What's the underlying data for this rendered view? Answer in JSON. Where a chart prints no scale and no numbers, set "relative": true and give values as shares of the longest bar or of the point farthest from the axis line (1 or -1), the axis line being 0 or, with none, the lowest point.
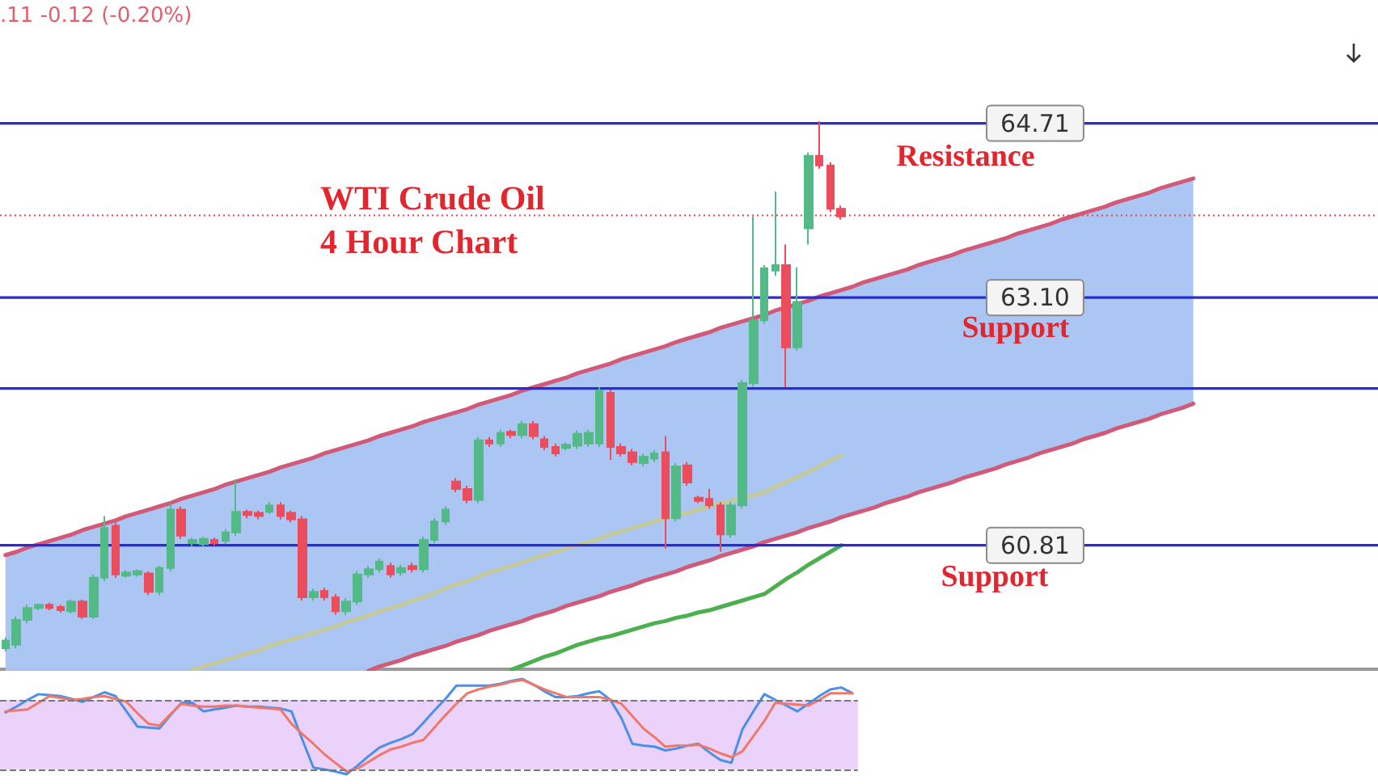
{
  "chart_data": [
    {
      "type": "candlestick",
      "title": "WTI Crude Oil\n4 Hour Chart",
      "annotations": [
        ".11 -0.12 (-0.20%)",
        "Resistance",
        "Support",
        "Support"
      ],
      "categories": [
        null,
        null,
        null,
        null,
        null,
        null,
        null,
        null,
        null,
        null,
        null,
        null,
        null,
        null,
        null,
        null,
        null,
        null,
        null,
        null,
        null,
        null,
        null,
        null,
        null,
        null,
        null,
        null,
        null,
        null,
        null,
        null,
        null,
        null,
        null,
        null,
        null,
        null,
        null,
        null,
        null,
        null,
        null,
        null,
        null,
        null,
        null,
        null,
        null,
        null,
        null,
        null,
        null,
        null,
        null,
        null,
        null,
        null,
        null,
        null,
        null,
        null,
        null,
        null,
        null,
        null,
        null,
        null,
        null,
        null,
        null,
        null,
        null,
        null,
        null,
        null,
        null,
        null,
        null,
        null,
        null,
        null,
        null,
        null,
        null,
        null,
        null,
        null,
        null,
        null,
        null,
        null,
        null,
        null,
        null,
        null,
        null,
        null,
        null,
        null,
        null,
        null,
        null,
        null,
        null,
        null,
        null,
        null,
        null
      ],
      "ohlc": [
        [
          59.86,
          59.96,
          59.83,
          59.93
        ],
        [
          59.89,
          60.15,
          59.86,
          60.12
        ],
        [
          60.12,
          60.26,
          60.09,
          60.23
        ],
        [
          60.23,
          60.27,
          60.21,
          60.26
        ],
        [
          60.26,
          60.28,
          60.21,
          60.23
        ],
        [
          60.24,
          60.26,
          60.19,
          60.21
        ],
        [
          60.2,
          60.31,
          60.18,
          60.29
        ],
        [
          60.29,
          60.31,
          60.13,
          60.15
        ],
        [
          60.15,
          60.54,
          60.13,
          60.51
        ],
        [
          60.51,
          61.08,
          60.48,
          60.97
        ],
        [
          60.99,
          61.02,
          60.51,
          60.54
        ],
        [
          60.53,
          60.58,
          60.51,
          60.56
        ],
        [
          60.54,
          60.59,
          60.52,
          60.57
        ],
        [
          60.55,
          60.57,
          60.35,
          60.38
        ],
        [
          60.38,
          60.62,
          60.35,
          60.6
        ],
        [
          60.6,
          61.2,
          60.57,
          61.14
        ],
        [
          61.14,
          61.17,
          60.87,
          60.9
        ],
        [
          60.83,
          60.88,
          60.8,
          60.86
        ],
        [
          60.82,
          60.89,
          60.8,
          60.87
        ],
        [
          60.86,
          60.88,
          60.81,
          60.83
        ],
        [
          60.85,
          60.96,
          60.82,
          60.93
        ],
        [
          60.93,
          61.42,
          60.9,
          61.12
        ],
        [
          61.12,
          61.14,
          61.06,
          61.09
        ],
        [
          61.11,
          61.13,
          61.05,
          61.08
        ],
        [
          61.12,
          61.21,
          61.1,
          61.18
        ],
        [
          61.18,
          61.21,
          61.05,
          61.08
        ],
        [
          61.11,
          61.13,
          61.02,
          61.05
        ],
        [
          61.05,
          61.08,
          60.3,
          60.33
        ],
        [
          60.33,
          60.41,
          60.3,
          60.38
        ],
        [
          60.39,
          60.42,
          60.3,
          60.33
        ],
        [
          60.33,
          60.36,
          60.17,
          60.2
        ],
        [
          60.2,
          60.32,
          60.17,
          60.29
        ],
        [
          60.29,
          60.57,
          60.26,
          60.54
        ],
        [
          60.54,
          60.62,
          60.51,
          60.59
        ],
        [
          60.59,
          60.69,
          60.56,
          60.66
        ],
        [
          60.62,
          60.65,
          60.51,
          60.54
        ],
        [
          60.56,
          60.63,
          60.53,
          60.6
        ],
        [
          60.62,
          60.65,
          60.56,
          60.59
        ],
        [
          60.59,
          60.89,
          60.56,
          60.86
        ],
        [
          60.86,
          61.06,
          60.83,
          61.03
        ],
        [
          61.03,
          61.17,
          61.0,
          61.14
        ],
        [
          61.4,
          61.43,
          61.3,
          61.33
        ],
        [
          61.33,
          61.36,
          61.2,
          61.23
        ],
        [
          61.23,
          61.81,
          61.2,
          61.78
        ],
        [
          61.78,
          61.81,
          61.72,
          61.75
        ],
        [
          61.75,
          61.88,
          61.72,
          61.85
        ],
        [
          61.86,
          61.88,
          61.8,
          61.83
        ],
        [
          61.83,
          61.96,
          61.8,
          61.93
        ],
        [
          61.93,
          61.96,
          61.79,
          61.82
        ],
        [
          61.79,
          61.82,
          61.69,
          61.72
        ],
        [
          61.72,
          61.75,
          61.63,
          61.66
        ],
        [
          61.71,
          61.76,
          61.69,
          61.74
        ],
        [
          61.73,
          61.87,
          61.7,
          61.84
        ],
        [
          61.75,
          61.88,
          61.72,
          61.85
        ],
        [
          61.75,
          62.27,
          61.72,
          62.24
        ],
        [
          62.22,
          62.25,
          61.6,
          61.72
        ],
        [
          61.72,
          61.75,
          61.63,
          61.66
        ],
        [
          61.67,
          61.7,
          61.55,
          61.58
        ],
        [
          61.57,
          61.66,
          61.54,
          61.63
        ],
        [
          61.61,
          61.69,
          61.58,
          61.66
        ],
        [
          61.67,
          61.82,
          60.78,
          61.06
        ],
        [
          61.06,
          61.57,
          61.03,
          61.54
        ],
        [
          61.55,
          61.58,
          61.36,
          61.39
        ],
        [
          61.25,
          61.27,
          61.2,
          61.22
        ],
        [
          61.24,
          61.33,
          61.15,
          61.18
        ],
        [
          61.18,
          61.21,
          60.75,
          60.91
        ],
        [
          60.91,
          61.21,
          60.88,
          61.18
        ],
        [
          61.18,
          62.34,
          61.15,
          62.31
        ],
        [
          62.31,
          63.85,
          62.28,
          62.89
        ],
        [
          62.89,
          63.4,
          62.86,
          63.37
        ],
        [
          63.35,
          64.08,
          63.3,
          63.4
        ],
        [
          63.4,
          63.59,
          62.27,
          62.64
        ],
        [
          62.64,
          63.38,
          62.61,
          63.06
        ],
        [
          63.74,
          64.44,
          63.59,
          64.41
        ],
        [
          64.41,
          64.73,
          64.29,
          64.32
        ],
        [
          64.32,
          64.35,
          63.89,
          63.92
        ],
        [
          63.92,
          63.95,
          63.82,
          63.85
        ],
        null,
        null,
        null,
        null,
        null,
        null,
        null,
        null,
        null,
        null,
        null,
        null,
        null,
        null,
        null,
        null,
        null,
        null,
        null,
        null,
        null,
        null,
        null,
        null,
        null,
        null,
        null,
        null,
        null,
        null,
        null,
        null
      ],
      "series": [
        {
          "type": "line",
          "color": "#a8c3f2",
          "values": [
            null,
            null,
            null,
            null,
            null,
            null,
            null,
            null,
            null,
            null,
            null,
            null,
            null,
            null,
            null,
            null,
            null,
            null,
            null,
            null,
            null,
            null,
            null,
            null,
            null,
            null,
            null,
            null,
            null,
            null,
            null,
            null,
            null,
            null,
            null,
            null,
            null,
            null,
            null,
            null,
            null,
            null,
            null,
            null,
            null,
            null,
            null,
            null,
            null,
            null,
            null,
            null,
            null,
            null,
            null,
            null,
            null,
            null,
            null,
            null,
            null,
            null,
            null,
            null,
            null,
            null,
            null,
            null,
            null,
            null,
            null,
            null,
            null,
            null,
            null,
            null,
            null,
            null,
            null,
            null,
            null,
            null,
            null,
            null,
            null,
            null,
            null,
            null,
            null,
            null,
            null,
            null,
            null,
            null,
            null,
            null,
            null,
            null,
            null,
            null,
            null,
            null,
            null,
            null,
            null,
            null,
            null,
            null,
            null
          ],
          "lower": [
            59.65,
            59.65,
            59.65,
            59.65,
            59.65,
            59.65,
            59.65,
            59.65,
            59.65,
            59.65,
            59.65,
            59.65,
            59.65,
            59.65,
            59.65,
            59.65,
            59.65,
            59.65,
            59.65,
            59.65,
            59.65,
            59.65,
            59.65,
            59.65,
            59.65,
            59.65,
            59.65,
            59.65,
            59.65,
            59.65,
            59.65,
            59.65,
            59.65,
            59.65,
            59.69,
            59.72,
            59.75,
            59.79,
            59.82,
            59.85,
            59.88,
            59.92,
            59.95,
            59.98,
            60.02,
            60.05,
            60.08,
            60.11,
            60.15,
            60.18,
            60.21,
            60.25,
            60.28,
            60.31,
            60.34,
            60.38,
            60.41,
            60.44,
            60.48,
            60.51,
            60.54,
            60.57,
            60.61,
            60.64,
            60.67,
            60.71,
            60.74,
            60.77,
            60.8,
            60.84,
            60.87,
            60.9,
            60.93,
            60.97,
            61.0,
            61.03,
            61.07,
            61.1,
            61.13,
            61.16,
            61.2,
            61.23,
            61.26,
            61.3,
            61.33,
            61.36,
            61.39,
            61.43,
            61.46,
            61.49,
            61.52,
            61.56,
            61.59,
            61.62,
            61.66,
            61.69,
            61.72,
            61.75,
            61.79,
            61.82,
            61.85,
            61.89,
            61.92,
            61.95,
            61.98,
            62.02,
            62.05,
            62.08,
            62.12
          ],
          "upper": [
            60.72,
            60.75,
            60.79,
            60.82,
            60.85,
            60.88,
            60.91,
            60.95,
            60.98,
            61.01,
            61.04,
            61.08,
            61.11,
            61.14,
            61.17,
            61.2,
            61.24,
            61.27,
            61.3,
            61.33,
            61.37,
            61.4,
            61.43,
            61.46,
            61.49,
            61.53,
            61.56,
            61.59,
            61.62,
            61.66,
            61.69,
            61.72,
            61.75,
            61.78,
            61.82,
            61.85,
            61.88,
            61.91,
            61.95,
            61.98,
            62.01,
            62.04,
            62.07,
            62.11,
            62.14,
            62.17,
            62.2,
            62.24,
            62.27,
            62.3,
            62.33,
            62.36,
            62.4,
            62.43,
            62.46,
            62.49,
            62.53,
            62.56,
            62.59,
            62.62,
            62.65,
            62.69,
            62.72,
            62.75,
            62.78,
            62.82,
            62.85,
            62.88,
            62.91,
            62.94,
            62.98,
            63.01,
            63.04,
            63.07,
            63.11,
            63.14,
            63.17,
            63.2,
            63.24,
            63.27,
            63.3,
            63.33,
            63.36,
            63.4,
            63.43,
            63.46,
            63.49,
            63.53,
            63.56,
            63.59,
            63.62,
            63.65,
            63.69,
            63.72,
            63.75,
            63.78,
            63.82,
            63.85,
            63.88,
            63.91,
            63.94,
            63.98,
            64.01,
            64.04,
            64.07,
            64.11,
            64.14,
            64.17,
            64.2
          ]
        },
        {
          "type": "line",
          "color": "#d05a78",
          "values": [
            60.72,
            60.75,
            60.79,
            60.82,
            60.85,
            60.88,
            60.91,
            60.95,
            60.98,
            61.01,
            61.04,
            61.08,
            61.11,
            61.14,
            61.17,
            61.2,
            61.24,
            61.27,
            61.3,
            61.33,
            61.37,
            61.4,
            61.43,
            61.46,
            61.49,
            61.53,
            61.56,
            61.59,
            61.62,
            61.66,
            61.69,
            61.72,
            61.75,
            61.78,
            61.82,
            61.85,
            61.88,
            61.91,
            61.95,
            61.98,
            62.01,
            62.04,
            62.07,
            62.11,
            62.14,
            62.17,
            62.2,
            62.24,
            62.27,
            62.3,
            62.33,
            62.36,
            62.4,
            62.43,
            62.46,
            62.49,
            62.53,
            62.56,
            62.59,
            62.62,
            62.65,
            62.69,
            62.72,
            62.75,
            62.78,
            62.82,
            62.85,
            62.88,
            62.91,
            62.94,
            62.98,
            63.01,
            63.04,
            63.07,
            63.11,
            63.14,
            63.17,
            63.2,
            63.24,
            63.27,
            63.3,
            63.33,
            63.36,
            63.4,
            63.43,
            63.46,
            63.49,
            63.53,
            63.56,
            63.59,
            63.62,
            63.65,
            63.69,
            63.72,
            63.75,
            63.78,
            63.82,
            63.85,
            63.88,
            63.91,
            63.94,
            63.98,
            64.01,
            64.04,
            64.07,
            64.11,
            64.14,
            64.17,
            64.2
          ]
        },
        {
          "type": "line",
          "color": "#d05a78",
          "values": [
            null,
            null,
            null,
            null,
            null,
            null,
            null,
            null,
            null,
            null,
            null,
            null,
            null,
            null,
            null,
            null,
            null,
            null,
            null,
            null,
            null,
            null,
            null,
            null,
            null,
            null,
            null,
            null,
            null,
            null,
            null,
            null,
            null,
            59.65,
            59.69,
            59.72,
            59.75,
            59.79,
            59.82,
            59.85,
            59.88,
            59.92,
            59.95,
            59.98,
            60.02,
            60.05,
            60.08,
            60.11,
            60.15,
            60.18,
            60.21,
            60.25,
            60.28,
            60.31,
            60.34,
            60.38,
            60.41,
            60.44,
            60.48,
            60.51,
            60.54,
            60.57,
            60.61,
            60.64,
            60.67,
            60.71,
            60.74,
            60.77,
            60.8,
            60.84,
            60.87,
            60.9,
            60.93,
            60.97,
            61.0,
            61.03,
            61.07,
            61.1,
            61.13,
            61.16,
            61.2,
            61.23,
            61.26,
            61.3,
            61.33,
            61.36,
            61.39,
            61.43,
            61.46,
            61.49,
            61.52,
            61.56,
            61.59,
            61.62,
            61.66,
            61.69,
            61.72,
            61.75,
            61.79,
            61.82,
            61.85,
            61.89,
            61.92,
            61.95,
            61.98,
            62.02,
            62.05,
            62.08,
            62.12
          ]
        },
        {
          "type": "line",
          "color": "#c4c99a",
          "values": [
            null,
            null,
            null,
            null,
            null,
            null,
            null,
            null,
            null,
            null,
            null,
            null,
            null,
            null,
            null,
            null,
            null,
            59.66,
            59.69,
            59.72,
            59.75,
            59.78,
            59.81,
            59.84,
            59.88,
            59.91,
            59.94,
            59.97,
            60.0,
            60.03,
            60.06,
            60.1,
            60.13,
            60.16,
            60.2,
            60.23,
            60.26,
            60.3,
            60.33,
            60.37,
            60.41,
            60.45,
            60.48,
            60.52,
            60.56,
            60.59,
            60.62,
            60.65,
            60.69,
            60.72,
            60.75,
            60.78,
            60.81,
            60.84,
            60.87,
            60.91,
            60.94,
            60.97,
            61.0,
            61.03,
            61.06,
            61.09,
            61.11,
            61.14,
            61.17,
            61.2,
            61.22,
            61.25,
            61.27,
            61.3,
            61.35,
            61.4,
            61.44,
            61.49,
            61.54,
            61.59,
            61.64,
            null,
            null,
            null,
            null,
            null,
            null,
            null,
            null,
            null,
            null,
            null,
            null,
            null,
            null,
            null,
            null,
            null,
            null,
            null,
            null,
            null,
            null,
            null,
            null,
            null,
            null,
            null,
            null,
            null,
            null,
            null,
            null
          ]
        },
        {
          "type": "line",
          "color": "#4caf50",
          "values": [
            null,
            null,
            null,
            null,
            null,
            null,
            null,
            null,
            null,
            null,
            null,
            null,
            null,
            null,
            null,
            null,
            null,
            null,
            null,
            null,
            null,
            null,
            null,
            null,
            null,
            null,
            null,
            null,
            null,
            null,
            null,
            null,
            null,
            null,
            null,
            null,
            null,
            null,
            null,
            null,
            null,
            null,
            null,
            null,
            null,
            null,
            59.66,
            59.7,
            59.74,
            59.78,
            59.81,
            59.85,
            59.89,
            59.92,
            59.95,
            59.97,
            60.0,
            60.03,
            60.06,
            60.09,
            60.11,
            60.14,
            60.16,
            60.19,
            60.21,
            60.24,
            60.27,
            60.3,
            60.33,
            60.36,
            60.43,
            60.5,
            60.56,
            60.63,
            60.69,
            60.75,
            60.81,
            null,
            null,
            null,
            null,
            null,
            null,
            null,
            null,
            null,
            null,
            null,
            null,
            null,
            null,
            null,
            null,
            null,
            null,
            null,
            null,
            null,
            null,
            null,
            null,
            null,
            null,
            null,
            null,
            null,
            null,
            null,
            null
          ]
        }
      ],
      "ylim": [
        59.65,
        65.85
      ],
      "yticks": [
        64.71,
        {
          "value": 63.1,
          "label": "63.10"
        },
        60.81
      ],
      "tick_labels": "y",
      "ref_lines": [
        {
          "axis": "y",
          "value": 64.71,
          "color": "#2a2ad8"
        },
        {
          "axis": "y",
          "value": 63.1,
          "color": "#2a2ad8"
        },
        {
          "axis": "y",
          "value": 62.26,
          "color": "#2a2ad8"
        },
        {
          "axis": "y",
          "value": 60.81,
          "color": "#2a2ad8"
        },
        {
          "axis": "y",
          "value": 63.86,
          "color": "#e04a4a",
          "line_style": "dotted"
        }
      ]
    },
    {
      "type": "line",
      "relative": true,
      "tick_labels": false,
      "categories": [
        null,
        null,
        null,
        null,
        null,
        null,
        null,
        null,
        null,
        null,
        null,
        null,
        null,
        null,
        null,
        null,
        null,
        null,
        null,
        null,
        null,
        null,
        null,
        null,
        null,
        null,
        null,
        null,
        null,
        null,
        null,
        null,
        null,
        null,
        null,
        null,
        null,
        null,
        null,
        null,
        null,
        null,
        null,
        null,
        null,
        null,
        null,
        null,
        null,
        null,
        null,
        null,
        null,
        null,
        null,
        null,
        null,
        null,
        null,
        null,
        null,
        null,
        null,
        null,
        null,
        null,
        null,
        null,
        null,
        null,
        null,
        null,
        null,
        null,
        null,
        null,
        null,
        null
      ],
      "series": [
        {
          "color": "#4a8fe8",
          "values": [
            0.65,
            0.71,
            0.78,
            0.84,
            0.83,
            0.82,
            0.79,
            0.76,
            0.81,
            0.86,
            0.82,
            0.66,
            0.5,
            0.49,
            0.48,
            0.62,
            0.75,
            0.75,
            0.66,
            0.68,
            0.7,
            0.72,
            0.71,
            0.71,
            0.7,
            0.69,
            0.66,
            0.36,
            0.07,
            0.05,
            0.03,
            0,
            0.09,
            0.19,
            0.28,
            0.33,
            0.37,
            0.42,
            0.54,
            0.67,
            0.79,
            0.93,
            0.93,
            0.93,
            0.93,
            0.95,
            0.98,
            1.0,
            0.94,
            0.87,
            0.81,
            0.81,
            0.82,
            0.85,
            0.87,
            0.78,
            0.59,
            0.32,
            0.3,
            0.29,
            0.25,
            0.27,
            0.3,
            0.32,
            0.23,
            0.15,
            0.12,
            0.47,
            0.66,
            0.84,
            0.78,
            0.72,
            0.66,
            0.74,
            0.82,
            0.89,
            0.91,
            0.85
          ]
        },
        {
          "color": "#f0786a",
          "values": [
            0.66,
            0.67,
            0.68,
            0.75,
            0.82,
            0.8,
            0.78,
            0.79,
            0.81,
            0.82,
            0.79,
            0.76,
            0.64,
            0.53,
            0.51,
            0.63,
            0.74,
            0.72,
            0.71,
            0.71,
            0.72,
            0.72,
            0.71,
            0.7,
            0.69,
            0.68,
            0.53,
            0.42,
            0.32,
            0.21,
            0.12,
            0.03,
            0.06,
            0.13,
            0.2,
            0.26,
            0.29,
            0.33,
            0.36,
            0.49,
            0.62,
            0.74,
            0.85,
            0.89,
            0.92,
            0.94,
            0.97,
            0.99,
            0.94,
            0.89,
            0.85,
            0.81,
            0.81,
            0.81,
            0.81,
            0.78,
            0.74,
            0.61,
            0.48,
            0.39,
            0.29,
            0.3,
            0.3,
            0.31,
            0.27,
            0.22,
            0.18,
            0.24,
            0.4,
            0.56,
            0.75,
            0.74,
            0.73,
            0.72,
            0.78,
            0.85,
            0.85,
            0.85
          ]
        }
      ],
      "bands": [
        {
          "axis": "y",
          "from": 0.05,
          "to": 0.78,
          "color": "#ead2fa"
        }
      ],
      "ref_lines": [
        {
          "axis": "y",
          "value": 0.05,
          "color": "#777777",
          "line_style": "dashed"
        },
        {
          "axis": "y",
          "value": 0.78,
          "color": "#777777",
          "line_style": "dashed"
        }
      ]
    }
  ]
}
